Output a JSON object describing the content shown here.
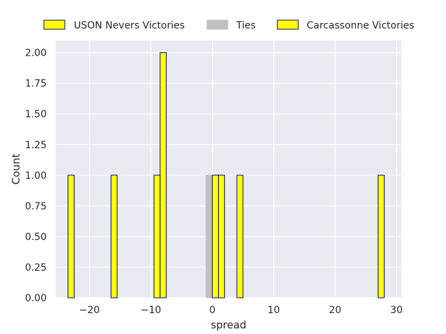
{
  "chart_data": {
    "type": "bar",
    "title": "",
    "xlabel": "spread",
    "ylabel": "Count",
    "xlim": [
      -25.5,
      30.8
    ],
    "ylim": [
      0,
      2.1
    ],
    "x_ticks": [
      -20,
      -10,
      0,
      10,
      20,
      30
    ],
    "x_tick_labels": [
      "−20",
      "−10",
      "0",
      "10",
      "20",
      "30"
    ],
    "y_ticks": [
      0,
      0.25,
      0.5,
      0.75,
      1.0,
      1.25,
      1.5,
      1.75,
      2.0
    ],
    "y_tick_labels": [
      "0.00",
      "0.25",
      "0.50",
      "0.75",
      "1.00",
      "1.25",
      "1.50",
      "1.75",
      "2.00"
    ],
    "grid": true,
    "legend_position": "top",
    "bin_width": 1,
    "series": [
      {
        "name": "USON Nevers Victories",
        "color": "#ffff00",
        "edge_color": "#000080",
        "bars": [
          {
            "x": -23,
            "count": 1
          },
          {
            "x": -16,
            "count": 1
          },
          {
            "x": -9,
            "count": 1
          },
          {
            "x": -8,
            "count": 2
          }
        ]
      },
      {
        "name": "Ties",
        "color": "#c0c0c0",
        "edge_color": "#c0c0c0",
        "bars": [
          {
            "x": -0.5,
            "count": 1
          }
        ]
      },
      {
        "name": "Carcassonne Victories",
        "color": "#ffff00",
        "edge_color": "#000080",
        "bars": [
          {
            "x": 0.5,
            "count": 1
          },
          {
            "x": 1.5,
            "count": 1
          },
          {
            "x": 4.5,
            "count": 1
          },
          {
            "x": 27.5,
            "count": 1
          }
        ]
      }
    ],
    "colors": {
      "plot_background": "#eaeaf2",
      "grid": "#ffffff",
      "text": "#262626"
    }
  }
}
